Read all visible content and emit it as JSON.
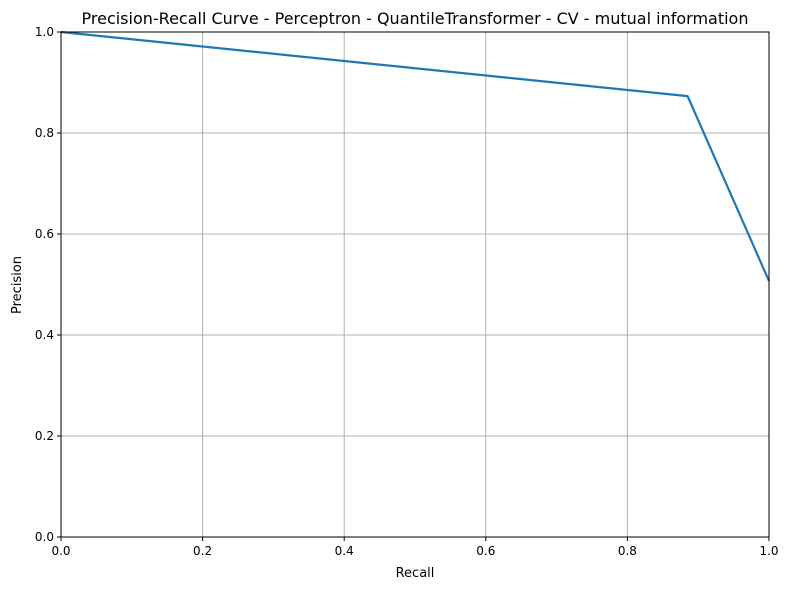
{
  "chart_data": {
    "type": "line",
    "title": "Precision-Recall Curve - Perceptron - QuantileTransformer - CV - mutual information",
    "xlabel": "Recall",
    "ylabel": "Precision",
    "xlim": [
      0,
      1
    ],
    "ylim": [
      0,
      1
    ],
    "xticks": [
      "0.0",
      "0.2",
      "0.4",
      "0.6",
      "0.8",
      "1.0"
    ],
    "yticks": [
      "0.0",
      "0.2",
      "0.4",
      "0.6",
      "0.8",
      "1.0"
    ],
    "grid": true,
    "series": [
      {
        "color": "#1f77b4",
        "x": [
          0.0,
          0.885,
          1.0
        ],
        "y": [
          1.0,
          0.873,
          0.507
        ]
      }
    ]
  }
}
